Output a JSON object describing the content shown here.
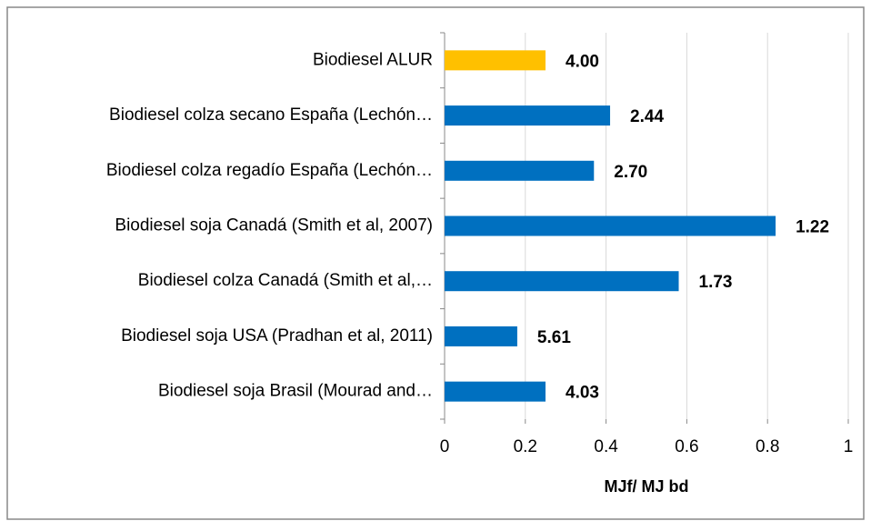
{
  "chart_data": {
    "type": "bar",
    "orientation": "horizontal",
    "categories": [
      "Biodiesel ALUR",
      "Biodiesel colza secano España  (Lechón…",
      "Biodiesel colza regadío España (Lechón…",
      "Biodiesel soja Canadá (Smith et al, 2007)",
      "Biodiesel colza Canadá (Smith et al,…",
      "Biodiesel soja USA (Pradhan et al, 2011)",
      "Biodiesel soja Brasil (Mourad and…"
    ],
    "values": [
      0.25,
      0.41,
      0.37,
      0.82,
      0.58,
      0.18,
      0.25
    ],
    "colors": [
      "#ffc000",
      "#0070c0",
      "#0070c0",
      "#0070c0",
      "#0070c0",
      "#0070c0",
      "#0070c0"
    ],
    "annotations": [
      "4.00",
      "2.44",
      "2.70",
      "1.22",
      "1.73",
      "5.61",
      "4.03"
    ],
    "x_label": "MJf/ MJ bd",
    "xlim": [
      0,
      1
    ],
    "xticks": [
      0,
      0.2,
      0.4,
      0.6,
      0.8,
      1
    ],
    "grid": true
  }
}
